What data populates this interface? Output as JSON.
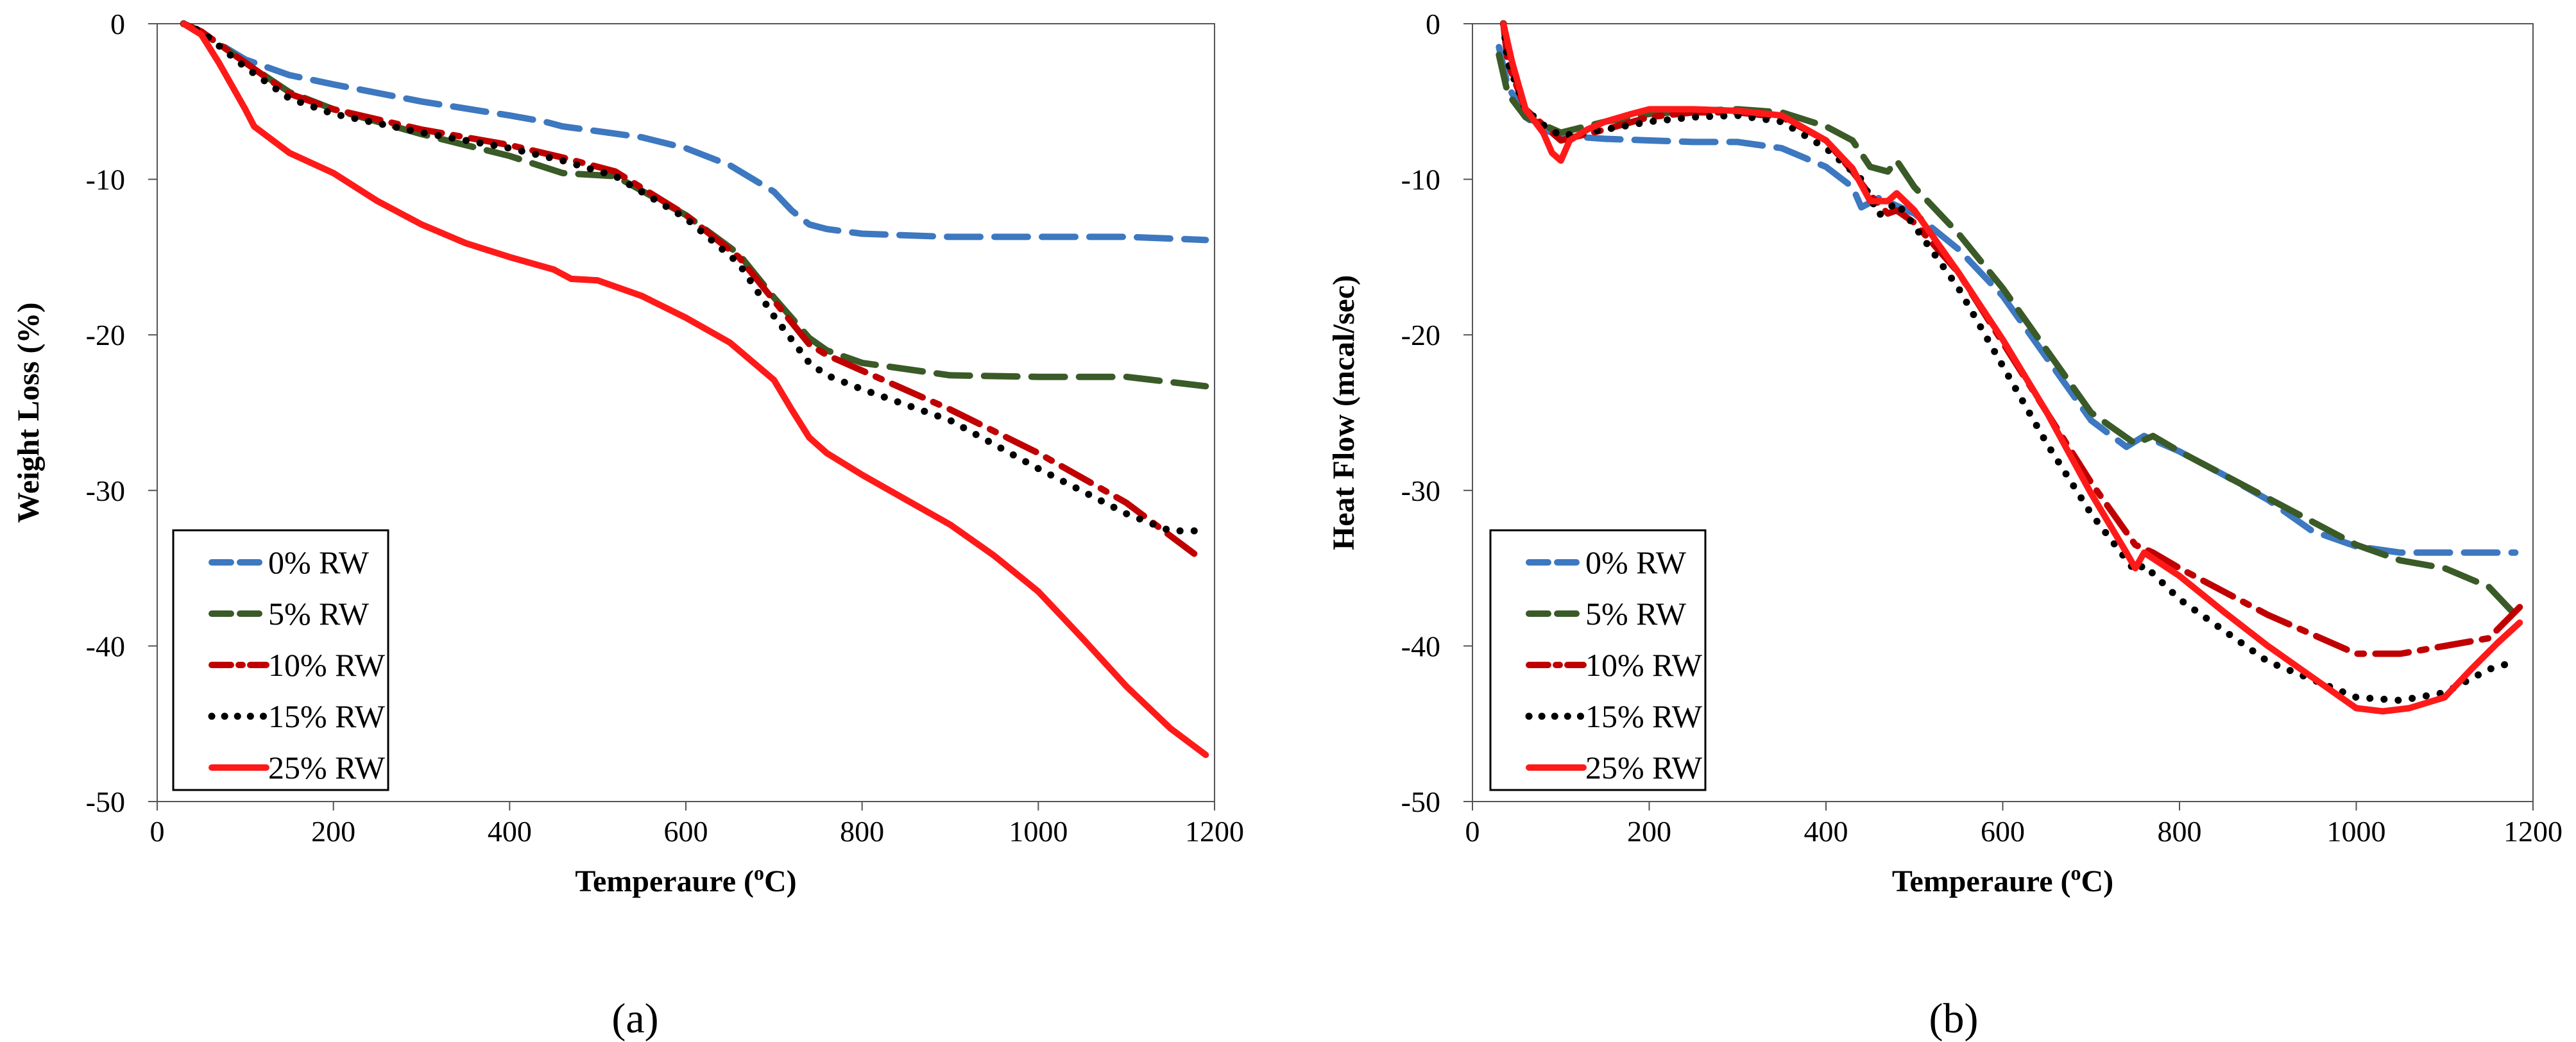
{
  "chart_data": [
    {
      "type": "line",
      "panel_label": "(a)",
      "xlabel": "Temperaure (",
      "xlabel_sup": "o",
      "xlabel_end": "C)",
      "ylabel": "Weight Loss (%)",
      "xlim": [
        0,
        1200
      ],
      "ylim": [
        -50,
        0
      ],
      "xticks": [
        "0",
        "200",
        "400",
        "600",
        "800",
        "1000",
        "1200"
      ],
      "yticks": [
        "0",
        "-10",
        "-20",
        "-30",
        "-40",
        "-50"
      ],
      "grid": false,
      "legend_position": "bottom-left",
      "series": [
        {
          "name": "0% RW",
          "color": "#3d78c0",
          "style": "dash",
          "x": [
            30,
            50,
            100,
            150,
            200,
            300,
            400,
            440,
            460,
            550,
            600,
            650,
            700,
            720,
            740,
            760,
            800,
            900,
            1000,
            1100,
            1190
          ],
          "y": [
            0,
            -0.6,
            -2.3,
            -3.3,
            -3.9,
            -5.0,
            -5.9,
            -6.3,
            -6.6,
            -7.3,
            -8.0,
            -9.1,
            -10.8,
            -12.0,
            -12.9,
            -13.2,
            -13.5,
            -13.7,
            -13.7,
            -13.7,
            -13.9
          ]
        },
        {
          "name": "5% RW",
          "color": "#3a5a27",
          "style": "dash",
          "x": [
            30,
            50,
            100,
            150,
            200,
            300,
            400,
            460,
            520,
            600,
            660,
            700,
            740,
            760,
            800,
            900,
            1000,
            1100,
            1190
          ],
          "y": [
            0,
            -0.5,
            -2.5,
            -4.4,
            -5.5,
            -7.1,
            -8.5,
            -9.6,
            -9.8,
            -12.3,
            -14.8,
            -17.6,
            -20.2,
            -21.0,
            -21.8,
            -22.6,
            -22.7,
            -22.7,
            -23.3
          ]
        },
        {
          "name": "10% RW",
          "color": "#c00000",
          "style": "dashdot",
          "x": [
            30,
            50,
            100,
            150,
            200,
            300,
            400,
            460,
            520,
            600,
            660,
            700,
            740,
            760,
            800,
            900,
            1000,
            1100,
            1180
          ],
          "y": [
            0,
            -0.5,
            -2.5,
            -4.5,
            -5.5,
            -6.8,
            -7.8,
            -8.6,
            -9.5,
            -12.3,
            -15.0,
            -17.8,
            -20.6,
            -21.3,
            -22.3,
            -24.8,
            -27.6,
            -30.8,
            -34.2
          ]
        },
        {
          "name": "15% RW",
          "color": "#000000",
          "style": "dot",
          "x": [
            30,
            50,
            100,
            150,
            200,
            300,
            400,
            460,
            520,
            600,
            660,
            700,
            740,
            760,
            800,
            900,
            1000,
            1100,
            1150,
            1190
          ],
          "y": [
            0,
            -0.5,
            -2.8,
            -4.8,
            -5.8,
            -7.0,
            -8.0,
            -8.8,
            -9.8,
            -12.5,
            -15.4,
            -18.8,
            -21.8,
            -22.6,
            -23.5,
            -25.5,
            -28.6,
            -31.5,
            -32.6,
            -32.6
          ]
        },
        {
          "name": "25% RW",
          "color": "#ff1a1a",
          "style": "solid",
          "x": [
            30,
            50,
            70,
            90,
            100,
            110,
            150,
            200,
            250,
            300,
            350,
            400,
            450,
            470,
            500,
            550,
            600,
            650,
            700,
            720,
            740,
            760,
            800,
            850,
            900,
            950,
            1000,
            1050,
            1100,
            1150,
            1190
          ],
          "y": [
            0,
            -0.7,
            -2.5,
            -4.5,
            -5.5,
            -6.6,
            -8.3,
            -9.6,
            -11.4,
            -12.9,
            -14.1,
            -15.0,
            -15.8,
            -16.4,
            -16.5,
            -17.5,
            -18.9,
            -20.5,
            -22.9,
            -24.8,
            -26.6,
            -27.6,
            -29.0,
            -30.6,
            -32.2,
            -34.2,
            -36.5,
            -39.5,
            -42.6,
            -45.3,
            -47.0
          ]
        }
      ]
    },
    {
      "type": "line",
      "panel_label": "(b)",
      "xlabel": "Temperaure (",
      "xlabel_sup": "o",
      "xlabel_end": "C)",
      "ylabel": "Heat Flow (mcal/sec)",
      "xlim": [
        0,
        1200
      ],
      "ylim": [
        -50,
        0
      ],
      "xticks": [
        "0",
        "200",
        "400",
        "600",
        "800",
        "1000",
        "1200"
      ],
      "yticks": [
        "0",
        "-10",
        "-20",
        "-30",
        "-40",
        "-50"
      ],
      "grid": false,
      "legend_position": "bottom-left",
      "series": [
        {
          "name": "0% RW",
          "color": "#3d78c0",
          "style": "dash",
          "x": [
            30,
            40,
            60,
            80,
            100,
            150,
            200,
            250,
            300,
            350,
            400,
            430,
            440,
            460,
            500,
            550,
            600,
            650,
            700,
            740,
            760,
            800,
            850,
            900,
            950,
            1000,
            1050,
            1100,
            1150,
            1180
          ],
          "y": [
            -1.5,
            -4.0,
            -6.0,
            -6.8,
            -7.2,
            -7.4,
            -7.5,
            -7.6,
            -7.6,
            -8.0,
            -9.2,
            -10.5,
            -11.8,
            -11.2,
            -12.2,
            -14.5,
            -17.5,
            -21.5,
            -25.5,
            -27.2,
            -26.5,
            -27.5,
            -29.0,
            -30.6,
            -32.6,
            -33.6,
            -34.0,
            -34.0,
            -34.0,
            -34.0
          ]
        },
        {
          "name": "5% RW",
          "color": "#3a5a27",
          "style": "dash",
          "x": [
            30,
            40,
            60,
            80,
            100,
            150,
            200,
            250,
            300,
            350,
            400,
            430,
            450,
            470,
            480,
            500,
            550,
            600,
            650,
            700,
            750,
            770,
            800,
            900,
            950,
            1000,
            1050,
            1100,
            1150,
            1180
          ],
          "y": [
            -2.0,
            -4.5,
            -6.0,
            -6.5,
            -7.0,
            -6.3,
            -5.8,
            -5.6,
            -5.5,
            -5.7,
            -6.6,
            -7.5,
            -9.2,
            -9.5,
            -8.8,
            -10.5,
            -13.5,
            -17.0,
            -21.0,
            -25.0,
            -27.0,
            -26.5,
            -27.5,
            -30.5,
            -32.0,
            -33.5,
            -34.5,
            -35.0,
            -36.2,
            -38.0
          ]
        },
        {
          "name": "10% RW",
          "color": "#c00000",
          "style": "dashdot",
          "x": [
            35,
            40,
            60,
            80,
            100,
            150,
            200,
            250,
            300,
            350,
            400,
            430,
            450,
            470,
            480,
            500,
            550,
            600,
            650,
            700,
            750,
            770,
            800,
            900,
            1000,
            1050,
            1100,
            1150,
            1185
          ],
          "y": [
            0,
            -2.5,
            -5.5,
            -6.5,
            -7.5,
            -6.8,
            -6.0,
            -5.7,
            -5.7,
            -6.0,
            -7.5,
            -9.5,
            -11.0,
            -12.2,
            -12.0,
            -12.8,
            -16.0,
            -20.5,
            -25.0,
            -29.5,
            -33.5,
            -34.0,
            -35.0,
            -38.0,
            -40.5,
            -40.5,
            -40.0,
            -39.5,
            -37.5
          ]
        },
        {
          "name": "15% RW",
          "color": "#000000",
          "style": "dot",
          "x": [
            35,
            40,
            60,
            80,
            100,
            150,
            200,
            250,
            300,
            350,
            400,
            440,
            460,
            480,
            500,
            550,
            600,
            650,
            700,
            750,
            760,
            800,
            900,
            1000,
            1050,
            1100,
            1150,
            1180
          ],
          "y": [
            0,
            -2.5,
            -5.5,
            -6.5,
            -7.2,
            -6.8,
            -6.3,
            -6.0,
            -5.9,
            -6.3,
            -8.0,
            -10.0,
            -12.3,
            -11.5,
            -13.0,
            -17.0,
            -22.0,
            -27.0,
            -31.5,
            -35.2,
            -34.8,
            -37.0,
            -41.0,
            -43.3,
            -43.5,
            -43.0,
            -41.5,
            -41.0
          ]
        },
        {
          "name": "25% RW",
          "color": "#ff1a1a",
          "style": "solid",
          "x": [
            35,
            45,
            60,
            80,
            90,
            100,
            110,
            130,
            150,
            180,
            200,
            250,
            300,
            350,
            400,
            430,
            450,
            470,
            480,
            500,
            550,
            600,
            650,
            700,
            740,
            750,
            760,
            800,
            850,
            900,
            950,
            1000,
            1030,
            1060,
            1100,
            1130,
            1160,
            1185
          ],
          "y": [
            0,
            -2.5,
            -5.5,
            -7.0,
            -8.3,
            -8.8,
            -7.5,
            -6.8,
            -6.3,
            -5.8,
            -5.5,
            -5.5,
            -5.6,
            -5.9,
            -7.5,
            -9.3,
            -11.4,
            -11.4,
            -10.9,
            -12.0,
            -16.0,
            -20.3,
            -25.0,
            -30.2,
            -34.0,
            -35.0,
            -34.0,
            -35.5,
            -37.8,
            -40.0,
            -42.0,
            -44.0,
            -44.2,
            -44.0,
            -43.3,
            -41.5,
            -39.8,
            -38.5
          ]
        }
      ]
    }
  ]
}
